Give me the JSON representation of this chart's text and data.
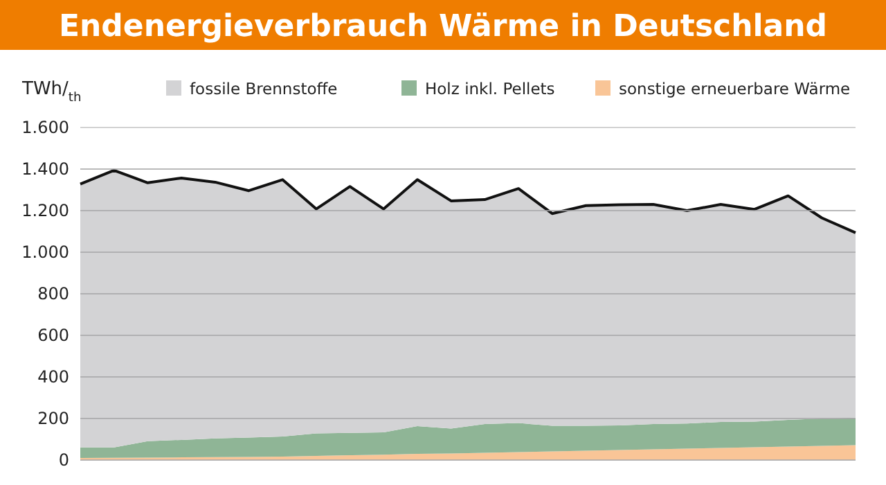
{
  "chart_data": {
    "type": "area",
    "title": "Endenergieverbrauch Wärme in Deutschland",
    "ylabel": "TWh/$_{th}$",
    "stacked": true,
    "categories": [
      null,
      null,
      null,
      null,
      null,
      null,
      null,
      null,
      null,
      null,
      null,
      null,
      null,
      null,
      null,
      null,
      null,
      null,
      null,
      null,
      null,
      null,
      null,
      null
    ],
    "series": [
      {
        "name": "sonstige erneuerbare Wärme",
        "color": "#f9c597",
        "values": [
          10,
          11,
          12,
          13,
          14,
          15,
          17,
          20,
          23,
          26,
          30,
          32,
          35,
          38,
          42,
          45,
          48,
          52,
          55,
          58,
          62,
          65,
          68,
          72
        ]
      },
      {
        "name": "Holz inkl. Pellets",
        "color": "#8fb596",
        "values": [
          51,
          50,
          79,
          84,
          90,
          93,
          96,
          108,
          108,
          107,
          133,
          120,
          138,
          140,
          123,
          120,
          119,
          121,
          121,
          125,
          123,
          128,
          132,
          132
        ]
      },
      {
        "name": "fossile Brennstoffe",
        "color": "#d3d3d5",
        "values": [
          1267,
          1333,
          1243,
          1260,
          1233,
          1188,
          1236,
          1080,
          1185,
          1075,
          1186,
          1095,
          1080,
          1128,
          1021,
          1059,
          1061,
          1057,
          1024,
          1047,
          1021,
          1078,
          965,
          890
        ]
      }
    ],
    "ylim": [
      0,
      1600
    ],
    "yticks": [
      0,
      {
        "value": 200,
        "label": "200"
      },
      {
        "value": 400,
        "label": "400"
      },
      {
        "value": 600,
        "label": "600"
      },
      {
        "value": 800,
        "label": "800"
      },
      {
        "value": 1000,
        "label": "1.000"
      },
      {
        "value": 1200,
        "label": "1.200"
      },
      {
        "value": 1400,
        "label": "1.400"
      },
      {
        "value": 1600,
        "label": "1.600"
      }
    ],
    "grid": "y",
    "legend": "top",
    "tick_labels": "y"
  }
}
